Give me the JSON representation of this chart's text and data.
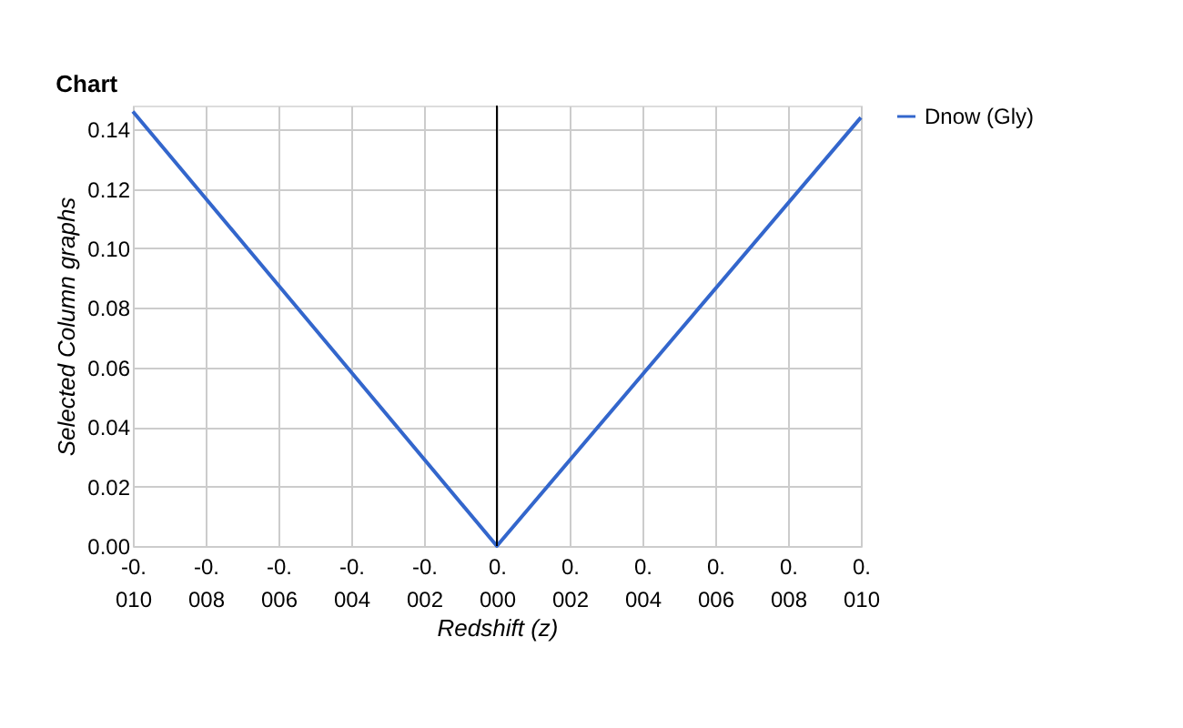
{
  "chart_data": {
    "type": "line",
    "title": "Chart",
    "xlabel": "Redshift (z)",
    "ylabel": "Selected Column graphs",
    "x": [
      -0.01,
      -0.005,
      0,
      0.005,
      0.01
    ],
    "series": [
      {
        "name": "Dnow (Gly)",
        "color": "#3366cc",
        "values": [
          0.146,
          0.073,
          0,
          0.072,
          0.144
        ]
      }
    ],
    "xlim": [
      -0.01,
      0.01
    ],
    "xticks": [
      {
        "value": -0.01,
        "label": "-0.010"
      },
      {
        "value": -0.008,
        "label": "-0.008"
      },
      {
        "value": -0.006,
        "label": "-0.006"
      },
      {
        "value": -0.004,
        "label": "-0.004"
      },
      {
        "value": -0.002,
        "label": "-0.002"
      },
      {
        "value": 0,
        "label": "0.000"
      },
      {
        "value": 0.002,
        "label": "0.002"
      },
      {
        "value": 0.004,
        "label": "0.004"
      },
      {
        "value": 0.006,
        "label": "0.006"
      },
      {
        "value": 0.008,
        "label": "0.008"
      },
      {
        "value": 0.01,
        "label": "0.010"
      }
    ],
    "ylim": [
      0,
      0.148
    ],
    "yticks": [
      {
        "value": 0,
        "label": "0.00"
      },
      {
        "value": 0.02,
        "label": "0.02"
      },
      {
        "value": 0.04,
        "label": "0.04"
      },
      {
        "value": 0.06,
        "label": "0.06"
      },
      {
        "value": 0.08,
        "label": "0.08"
      },
      {
        "value": 0.1,
        "label": "0.10"
      },
      {
        "value": 0.12,
        "label": "0.12"
      },
      {
        "value": 0.14,
        "label": "0.14"
      }
    ],
    "ref_lines": [
      {
        "axis": "x",
        "value": 0,
        "color": "#000000"
      }
    ],
    "grid": true,
    "legend": "right",
    "marker": "none",
    "line_style": "solid"
  }
}
